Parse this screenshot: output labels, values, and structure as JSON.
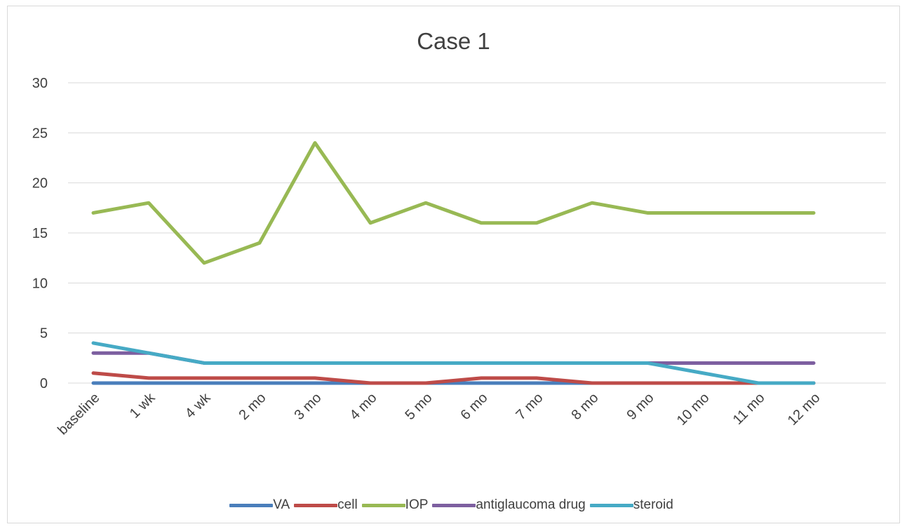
{
  "chart_data": {
    "type": "line",
    "title": "Case 1",
    "categories": [
      "baseline",
      "1 wk",
      "4 wk",
      "2 mo",
      "3 mo",
      "4 mo",
      "5 mo",
      "6 mo",
      "7 mo",
      "8 mo",
      "9 mo",
      "10 mo",
      "11 mo",
      "12 mo"
    ],
    "ylim": [
      0,
      30
    ],
    "yticks": [
      "0",
      "5",
      "10",
      "15",
      "20",
      "25",
      "30"
    ],
    "grid": true,
    "legend_position": "bottom",
    "series": [
      {
        "name": "VA",
        "color": "#4a7ebb",
        "values": [
          0,
          0,
          0,
          0,
          0,
          0,
          0,
          0,
          0,
          0,
          0,
          0,
          0,
          0
        ]
      },
      {
        "name": "cell",
        "color": "#be4b48",
        "values": [
          1,
          0.5,
          0.5,
          0.5,
          0.5,
          0,
          0,
          0.5,
          0.5,
          0,
          0,
          0,
          0,
          0
        ]
      },
      {
        "name": "IOP",
        "color": "#98b954",
        "values": [
          17,
          18,
          12,
          14,
          24,
          16,
          18,
          16,
          16,
          18,
          17,
          17,
          17,
          17
        ]
      },
      {
        "name": "antiglaucoma drug",
        "color": "#7d5fa0",
        "values": [
          3,
          3,
          2,
          2,
          2,
          2,
          2,
          2,
          2,
          2,
          2,
          2,
          2,
          2
        ]
      },
      {
        "name": "steroid",
        "color": "#46aac5",
        "values": [
          4,
          3,
          2,
          2,
          2,
          2,
          2,
          2,
          2,
          2,
          2,
          1,
          0,
          0
        ]
      }
    ]
  }
}
